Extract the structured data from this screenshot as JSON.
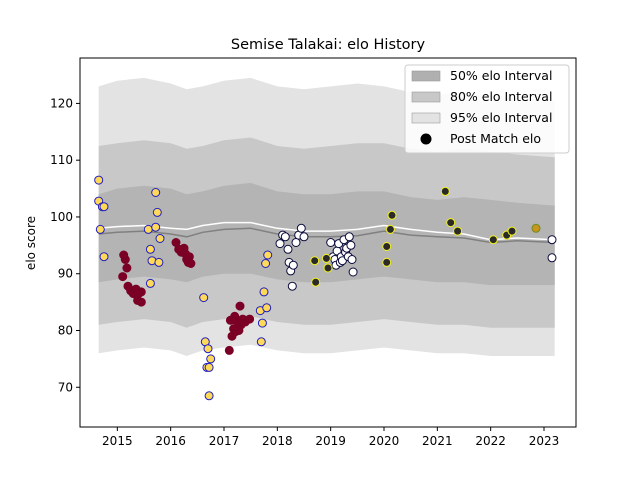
{
  "chart_data": {
    "type": "scatter",
    "title": "Semise Talakai: elo History",
    "xlabel": "",
    "ylabel": "elo score",
    "xlim": [
      2014.3,
      2023.6
    ],
    "ylim": [
      63,
      128
    ],
    "x_ticks": [
      "2015",
      "2016",
      "2017",
      "2018",
      "2019",
      "2020",
      "2021",
      "2022",
      "2023"
    ],
    "y_ticks": [
      "70",
      "80",
      "90",
      "100",
      "110",
      "120"
    ],
    "grid": false,
    "legend_position": "top-right",
    "legend": [
      {
        "label": "50% elo Interval",
        "swatch": "#b0b0b0",
        "kind": "patch"
      },
      {
        "label": "80% elo Interval",
        "swatch": "#c8c8c8",
        "kind": "patch"
      },
      {
        "label": "95% elo Interval",
        "swatch": "#e3e3e3",
        "kind": "patch"
      },
      {
        "label": "Post Match elo",
        "swatch": "#000000",
        "kind": "marker"
      }
    ],
    "bands": {
      "x": [
        2014.65,
        2015.0,
        2015.5,
        2016.0,
        2016.3,
        2016.6,
        2017.0,
        2017.5,
        2018.0,
        2018.5,
        2019.0,
        2019.5,
        2020.0,
        2020.5,
        2021.0,
        2021.5,
        2022.0,
        2022.5,
        2023.2
      ],
      "p95_high": [
        123.0,
        124.0,
        124.5,
        123.5,
        122.5,
        123.0,
        124.0,
        124.5,
        123.0,
        122.5,
        123.0,
        123.5,
        123.0,
        122.0,
        121.5,
        122.0,
        121.5,
        121.0,
        120.5
      ],
      "p80_high": [
        112.5,
        113.0,
        113.5,
        113.0,
        112.0,
        112.5,
        113.5,
        114.0,
        112.5,
        112.0,
        112.5,
        113.0,
        113.0,
        112.0,
        111.5,
        112.0,
        111.5,
        111.0,
        110.5
      ],
      "p50_high": [
        104.0,
        105.0,
        105.5,
        105.0,
        104.0,
        104.5,
        105.5,
        106.0,
        104.5,
        104.0,
        104.0,
        104.5,
        104.5,
        103.5,
        103.0,
        103.5,
        103.0,
        102.5,
        102.0
      ],
      "median": [
        97.0,
        97.3,
        97.5,
        97.0,
        96.5,
        97.3,
        97.8,
        98.0,
        97.0,
        96.5,
        96.5,
        96.7,
        97.5,
        96.8,
        96.5,
        96.3,
        95.5,
        95.8,
        95.5
      ],
      "p50_low": [
        88.5,
        89.0,
        89.5,
        89.0,
        88.5,
        89.5,
        90.0,
        90.0,
        89.0,
        88.5,
        88.5,
        89.0,
        89.5,
        89.0,
        88.5,
        88.5,
        88.0,
        88.0,
        88.0
      ],
      "p80_low": [
        81.0,
        81.5,
        82.0,
        81.5,
        80.5,
        81.5,
        82.0,
        82.5,
        81.5,
        81.0,
        81.0,
        81.5,
        82.0,
        81.5,
        81.0,
        81.0,
        80.5,
        80.5,
        80.5
      ],
      "p95_low": [
        76.0,
        76.5,
        77.0,
        76.5,
        75.5,
        76.5,
        77.0,
        77.5,
        76.5,
        76.0,
        76.0,
        76.5,
        77.0,
        76.5,
        76.0,
        76.0,
        75.5,
        75.5,
        75.5
      ],
      "mean_line": [
        98.0,
        98.3,
        98.5,
        98.0,
        97.8,
        98.5,
        99.0,
        99.0,
        98.0,
        97.5,
        97.5,
        97.8,
        98.5,
        97.8,
        97.3,
        97.0,
        96.0,
        96.3,
        96.0
      ]
    },
    "series": [
      {
        "color": "#ffd95a",
        "edge": "#1f1fbf",
        "points": [
          [
            2014.65,
            106.5
          ],
          [
            2014.65,
            102.8
          ],
          [
            2014.72,
            101.8
          ],
          [
            2014.75,
            101.8
          ],
          [
            2014.68,
            97.8
          ],
          [
            2014.75,
            93.0
          ],
          [
            2015.58,
            97.8
          ],
          [
            2015.62,
            94.3
          ],
          [
            2015.62,
            88.3
          ],
          [
            2015.65,
            92.3
          ],
          [
            2015.72,
            104.3
          ],
          [
            2015.72,
            98.2
          ],
          [
            2015.75,
            100.8
          ],
          [
            2015.78,
            92.0
          ],
          [
            2015.8,
            96.2
          ],
          [
            2016.62,
            85.8
          ],
          [
            2016.65,
            78.0
          ],
          [
            2016.68,
            73.5
          ],
          [
            2016.7,
            76.8
          ],
          [
            2016.72,
            73.5
          ],
          [
            2016.72,
            68.5
          ],
          [
            2016.75,
            75.0
          ],
          [
            2017.68,
            83.5
          ],
          [
            2017.7,
            78.0
          ],
          [
            2017.72,
            81.3
          ],
          [
            2017.75,
            86.8
          ],
          [
            2017.78,
            91.8
          ],
          [
            2017.8,
            84.0
          ],
          [
            2017.82,
            93.3
          ]
        ]
      },
      {
        "color": "#7a0026",
        "edge": "#7a0026",
        "points": [
          [
            2015.1,
            89.5
          ],
          [
            2015.12,
            93.3
          ],
          [
            2015.15,
            92.5
          ],
          [
            2015.18,
            91.0
          ],
          [
            2015.2,
            87.8
          ],
          [
            2015.25,
            87.0
          ],
          [
            2015.3,
            86.5
          ],
          [
            2015.35,
            87.3
          ],
          [
            2015.38,
            85.3
          ],
          [
            2015.4,
            86.5
          ],
          [
            2015.45,
            85.0
          ],
          [
            2015.45,
            86.8
          ],
          [
            2016.1,
            95.5
          ],
          [
            2016.15,
            94.3
          ],
          [
            2016.2,
            93.8
          ],
          [
            2016.25,
            94.5
          ],
          [
            2016.28,
            93.5
          ],
          [
            2016.3,
            92.5
          ],
          [
            2016.33,
            92.0
          ],
          [
            2016.35,
            93.0
          ],
          [
            2016.38,
            91.8
          ],
          [
            2017.1,
            76.5
          ],
          [
            2017.12,
            81.8
          ],
          [
            2017.15,
            79.0
          ],
          [
            2017.18,
            80.3
          ],
          [
            2017.2,
            82.5
          ],
          [
            2017.22,
            79.8
          ],
          [
            2017.25,
            81.5
          ],
          [
            2017.28,
            80.0
          ],
          [
            2017.3,
            84.3
          ],
          [
            2017.32,
            81.0
          ],
          [
            2017.35,
            82.0
          ],
          [
            2017.4,
            81.5
          ],
          [
            2017.48,
            82.0
          ]
        ]
      },
      {
        "color": "#ffffff",
        "edge": "#0a0a3c",
        "points": [
          [
            2018.05,
            95.3
          ],
          [
            2018.1,
            96.8
          ],
          [
            2018.15,
            96.5
          ],
          [
            2018.2,
            94.3
          ],
          [
            2018.22,
            92.0
          ],
          [
            2018.25,
            90.5
          ],
          [
            2018.28,
            87.8
          ],
          [
            2018.3,
            91.5
          ],
          [
            2018.35,
            95.5
          ],
          [
            2018.4,
            96.8
          ],
          [
            2018.45,
            98.0
          ],
          [
            2018.5,
            96.5
          ],
          [
            2019.0,
            95.5
          ],
          [
            2019.05,
            93.0
          ],
          [
            2019.08,
            92.5
          ],
          [
            2019.1,
            91.5
          ],
          [
            2019.12,
            94.0
          ],
          [
            2019.15,
            95.3
          ],
          [
            2019.18,
            92.0
          ],
          [
            2019.2,
            93.0
          ],
          [
            2019.22,
            92.3
          ],
          [
            2019.25,
            96.0
          ],
          [
            2019.28,
            93.8
          ],
          [
            2019.3,
            94.5
          ],
          [
            2019.33,
            93.0
          ],
          [
            2019.35,
            96.5
          ],
          [
            2019.38,
            95.0
          ],
          [
            2019.4,
            92.5
          ],
          [
            2019.42,
            90.3
          ],
          [
            2023.15,
            96.0
          ],
          [
            2023.15,
            92.8
          ]
        ]
      },
      {
        "color": "#2a2a2a",
        "edge": "#f2f21a",
        "points": [
          [
            2018.7,
            92.3
          ],
          [
            2018.72,
            88.5
          ],
          [
            2018.92,
            92.7
          ],
          [
            2018.95,
            91.0
          ],
          [
            2020.05,
            94.8
          ],
          [
            2020.05,
            92.0
          ],
          [
            2020.12,
            97.8
          ],
          [
            2020.15,
            100.3
          ],
          [
            2021.15,
            104.5
          ],
          [
            2021.25,
            99.0
          ],
          [
            2021.38,
            97.5
          ],
          [
            2022.05,
            96.0
          ],
          [
            2022.3,
            96.8
          ],
          [
            2022.4,
            97.5
          ]
        ]
      },
      {
        "color": "#c8961e",
        "edge": "#6e8a1e",
        "points": [
          [
            2022.85,
            98.0
          ]
        ]
      }
    ]
  }
}
